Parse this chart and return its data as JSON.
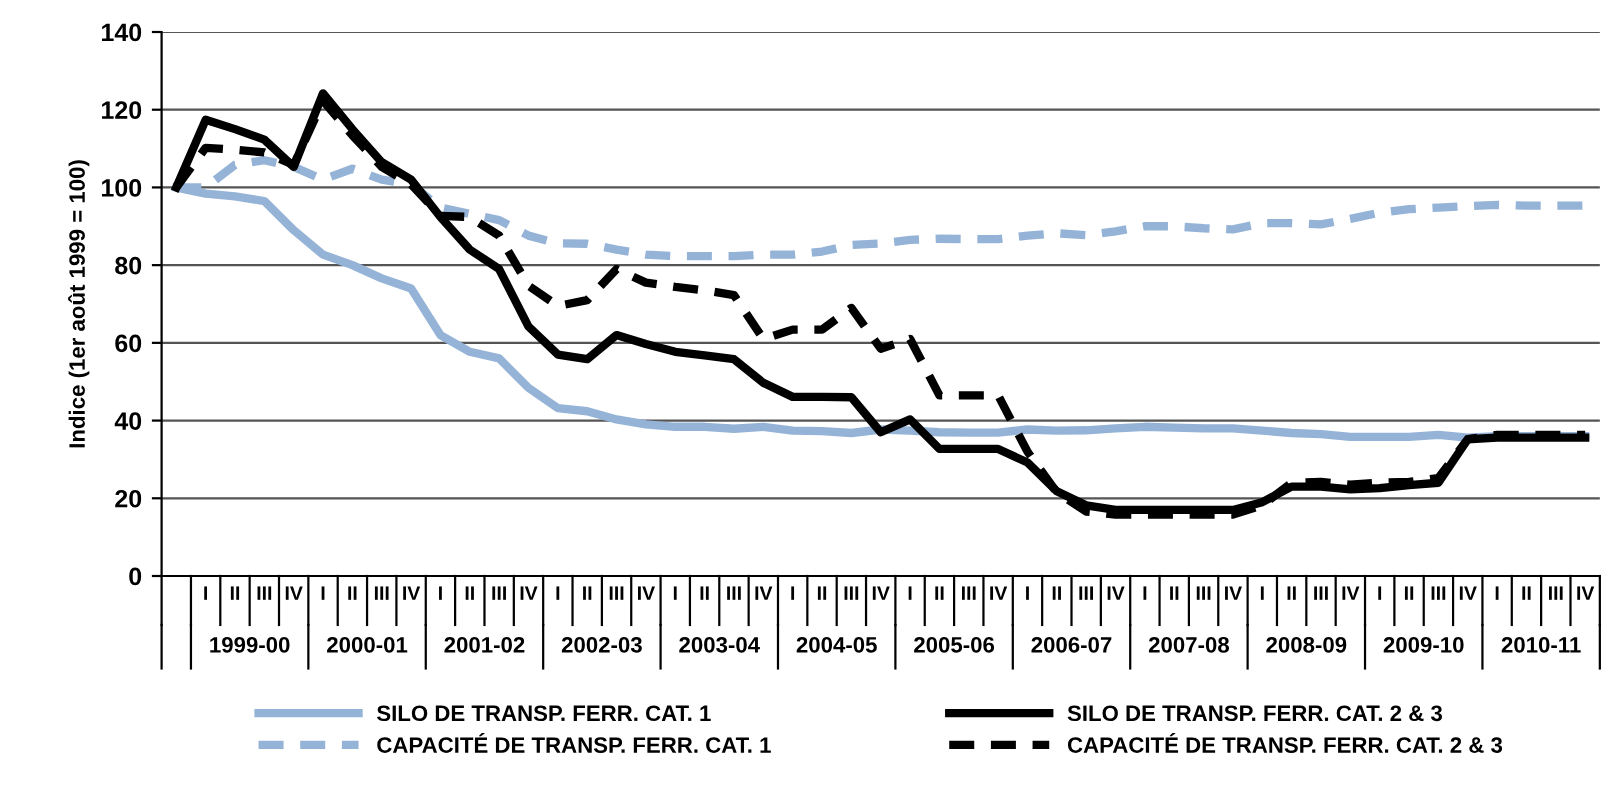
{
  "chart_data": {
    "type": "line",
    "ylabel": "Indice (1er août 1999 = 100)",
    "categories": [
      null,
      "I",
      "II",
      "III",
      "IV",
      "I",
      "II",
      "III",
      "IV",
      "I",
      "II",
      "III",
      "IV",
      "I",
      "II",
      "III",
      "IV",
      "I",
      "II",
      "III",
      "IV",
      "I",
      "II",
      "III",
      "IV",
      "I",
      "II",
      "III",
      "IV",
      "I",
      "II",
      "III",
      "IV",
      "I",
      "II",
      "III",
      "IV",
      "I",
      "II",
      "III",
      "IV",
      "I",
      "II",
      "III",
      "IV",
      "I",
      "II",
      "III",
      "IV"
    ],
    "annotations": [
      "1999-00",
      "2000-01",
      "2001-02",
      "2002-03",
      "2003-04",
      "2004-05",
      "2005-06",
      "2006-07",
      "2007-08",
      "2008-09",
      "2009-10",
      "2010-11"
    ],
    "ylim": [
      0,
      140
    ],
    "yticks": [
      0,
      20,
      40,
      60,
      80,
      100,
      120,
      140
    ],
    "grid": "y",
    "legend": "bottom",
    "marker": "none",
    "series": [
      {
        "name": "SILO DE TRANSP. FERR. CAT. 1",
        "color": "#95b3d7",
        "line_style": "solid",
        "values": [
          100,
          98.4,
          97.7,
          96.5,
          89,
          82.7,
          80,
          76.6,
          74,
          62,
          57.7,
          56,
          48.4,
          43.2,
          42.4,
          40.3,
          39,
          38.4,
          38.4,
          37.9,
          38.4,
          37.4,
          37.3,
          36.8,
          37.7,
          37.4,
          37,
          36.9,
          36.9,
          37.7,
          37.4,
          37.5,
          38,
          38.4,
          38.2,
          38,
          38,
          37.4,
          36.8,
          36.5,
          35.8,
          35.8,
          35.8,
          36.3,
          35.6,
          36,
          36,
          36,
          36
        ]
      },
      {
        "name": "CAPACITÉ DE TRANSP. FERR. CAT. 1",
        "color": "#95b3d7",
        "line_style": "dashed",
        "values": [
          100,
          100,
          105.8,
          107,
          105.3,
          102,
          104.8,
          102,
          100.8,
          94.8,
          93.2,
          91.6,
          87.6,
          85.6,
          85.5,
          84,
          82.7,
          82.3,
          82.3,
          82.3,
          82.7,
          82.7,
          83.5,
          85.2,
          85.6,
          86.5,
          86.8,
          86.7,
          86.7,
          87.6,
          88.2,
          87.7,
          88.7,
          90,
          90,
          89.5,
          89.2,
          90.8,
          90.8,
          90.5,
          91.9,
          93.5,
          94.4,
          94.8,
          95.2,
          95.5,
          95.3,
          95.3,
          95.3
        ]
      },
      {
        "name": "SILO DE TRANSP. FERR. CAT. 2 & 3",
        "color": "#000000",
        "line_style": "solid",
        "values": [
          100,
          117.4,
          115,
          112.3,
          105.3,
          124.2,
          115,
          106.5,
          102,
          92.4,
          84,
          79,
          64.2,
          57,
          55.8,
          62,
          59.7,
          57.7,
          56.8,
          55.8,
          49.7,
          46.1,
          46.1,
          46,
          37,
          40.3,
          32.7,
          32.7,
          32.7,
          29.2,
          21.8,
          18.2,
          17,
          17,
          17,
          17,
          17,
          19,
          23,
          23,
          22.3,
          22.6,
          23.4,
          24,
          35.2,
          35.6,
          35.6,
          35.6,
          35.6
        ]
      },
      {
        "name": "CAPACITÉ DE TRANSP. FERR. CAT. 2 & 3",
        "color": "#000000",
        "line_style": "dashed",
        "values": [
          100,
          110.2,
          109.7,
          109,
          105.8,
          122.3,
          113.4,
          105.3,
          100.8,
          92.7,
          92.4,
          87.6,
          74.7,
          69.5,
          71,
          79,
          75.5,
          74.4,
          73.5,
          72.3,
          61,
          63.4,
          63.4,
          69,
          58.5,
          61,
          46.5,
          46.5,
          46.5,
          32,
          21.5,
          16.6,
          15.8,
          15.8,
          15.8,
          15.8,
          15.8,
          18.2,
          24,
          24.2,
          23.5,
          24,
          24.2,
          25.2,
          35.2,
          36.3,
          36.3,
          36.3,
          36.3
        ]
      }
    ]
  }
}
